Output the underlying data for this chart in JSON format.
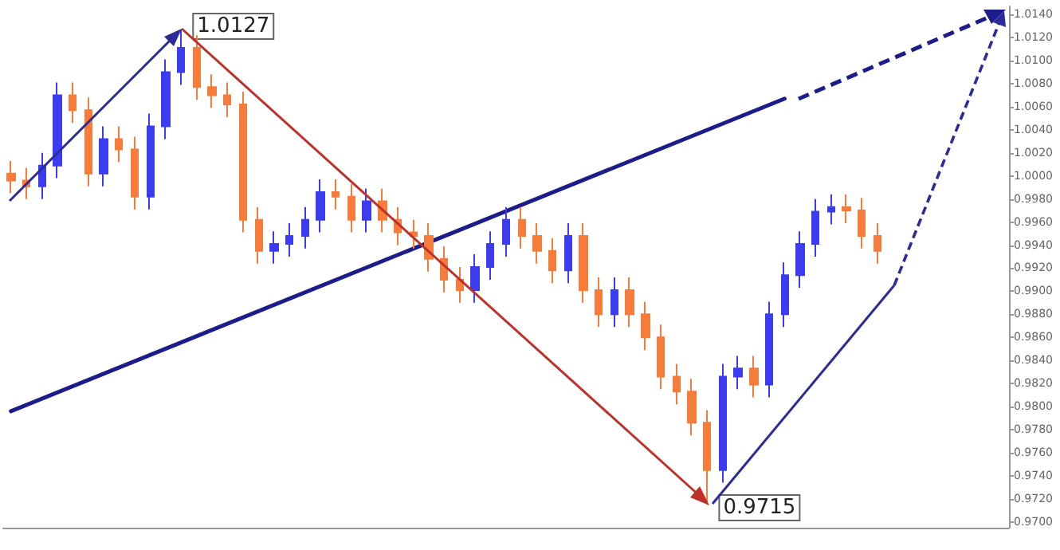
{
  "chart_data": {
    "type": "candlestick",
    "tick_labels": "y",
    "yticks": [
      {
        "value": 0.97,
        "label": "0.9700"
      },
      {
        "value": 0.972,
        "label": "0.9720"
      },
      {
        "value": 0.974,
        "label": "0.9740"
      },
      {
        "value": 0.976,
        "label": "0.9760"
      },
      {
        "value": 0.978,
        "label": "0.9780"
      },
      {
        "value": 0.98,
        "label": "0.9800"
      },
      {
        "value": 0.982,
        "label": "0.9820"
      },
      {
        "value": 0.984,
        "label": "0.9840"
      },
      {
        "value": 0.986,
        "label": "0.9860"
      },
      {
        "value": 0.988,
        "label": "0.9880"
      },
      {
        "value": 0.99,
        "label": "0.9900"
      },
      {
        "value": 0.992,
        "label": "0.9920"
      },
      {
        "value": 0.994,
        "label": "0.9940"
      },
      {
        "value": 0.996,
        "label": "0.9960"
      },
      {
        "value": 0.998,
        "label": "0.9980"
      },
      {
        "value": 1.0,
        "label": "1.0000"
      },
      {
        "value": 1.002,
        "label": "1.0020"
      },
      {
        "value": 1.004,
        "label": "1.0040"
      },
      {
        "value": 1.006,
        "label": "1.0060"
      },
      {
        "value": 1.008,
        "label": "1.0080"
      },
      {
        "value": 1.01,
        "label": "1.0100"
      },
      {
        "value": 1.012,
        "label": "1.0120"
      },
      {
        "value": 1.014,
        "label": "1.0140"
      }
    ],
    "categories": [
      null,
      null,
      null,
      null,
      null,
      null,
      null,
      null,
      null,
      null,
      null,
      null,
      null,
      null,
      null,
      null,
      null,
      null,
      null,
      null,
      null,
      null,
      null,
      null,
      null,
      null,
      null,
      null,
      null,
      null,
      null,
      null,
      null,
      null,
      null,
      null,
      null,
      null,
      null,
      null,
      null,
      null,
      null,
      null,
      null,
      null,
      null,
      null,
      null,
      null,
      null,
      null,
      null,
      null,
      null,
      null,
      null,
      null,
      null,
      null,
      null,
      null,
      null,
      null,
      null
    ],
    "ylim": [
      0.9695,
      1.0147
    ],
    "ohlc": [
      [
        1.0002,
        1.0013,
        0.9985,
        0.9996
      ],
      [
        0.9996,
        1.0007,
        0.998,
        0.9991
      ],
      [
        0.9991,
        1.002,
        0.998,
        1.0009
      ],
      [
        1.0009,
        1.0081,
        0.9998,
        1.007
      ],
      [
        1.007,
        1.0081,
        1.0046,
        1.0057
      ],
      [
        1.0057,
        1.0068,
        0.9991,
        1.0002
      ],
      [
        1.0002,
        1.0043,
        0.9991,
        1.0032
      ],
      [
        1.0032,
        1.0043,
        1.0012,
        1.0023
      ],
      [
        1.0023,
        1.0034,
        0.9971,
        0.9982
      ],
      [
        0.9982,
        1.0054,
        0.9971,
        1.0043
      ],
      [
        1.0043,
        1.0101,
        1.0032,
        1.009
      ],
      [
        1.009,
        1.0127,
        1.0079,
        1.0111
      ],
      [
        1.0111,
        1.0122,
        1.0066,
        1.0077
      ],
      [
        1.0077,
        1.0088,
        1.0059,
        1.007
      ],
      [
        1.007,
        1.0081,
        1.0051,
        1.0062
      ],
      [
        1.0062,
        1.0073,
        0.9951,
        0.9962
      ],
      [
        0.9962,
        0.9973,
        0.9924,
        0.9935
      ],
      [
        0.9935,
        0.9952,
        0.9924,
        0.9941
      ],
      [
        0.9941,
        0.9959,
        0.993,
        0.9948
      ],
      [
        0.9948,
        0.9973,
        0.9937,
        0.9962
      ],
      [
        0.9962,
        0.9997,
        0.9951,
        0.9986
      ],
      [
        0.9986,
        0.9997,
        0.9971,
        0.9982
      ],
      [
        0.9982,
        0.9993,
        0.9951,
        0.9962
      ],
      [
        0.9962,
        0.9989,
        0.9951,
        0.9978
      ],
      [
        0.9978,
        0.9989,
        0.9951,
        0.9962
      ],
      [
        0.9962,
        0.9973,
        0.994,
        0.9951
      ],
      [
        0.9951,
        0.9962,
        0.9937,
        0.9948
      ],
      [
        0.9948,
        0.9959,
        0.9917,
        0.9928
      ],
      [
        0.9928,
        0.9939,
        0.9899,
        0.991
      ],
      [
        0.991,
        0.9921,
        0.989,
        0.9901
      ],
      [
        0.9901,
        0.9932,
        0.989,
        0.9921
      ],
      [
        0.9921,
        0.9952,
        0.991,
        0.9941
      ],
      [
        0.9941,
        0.9973,
        0.993,
        0.9962
      ],
      [
        0.9962,
        0.9973,
        0.9937,
        0.9948
      ],
      [
        0.9948,
        0.9959,
        0.9924,
        0.9935
      ],
      [
        0.9935,
        0.9946,
        0.9907,
        0.9918
      ],
      [
        0.9918,
        0.9959,
        0.9907,
        0.9948
      ],
      [
        0.9948,
        0.9959,
        0.989,
        0.9901
      ],
      [
        0.9901,
        0.9912,
        0.9869,
        0.988
      ],
      [
        0.988,
        0.9912,
        0.9869,
        0.9901
      ],
      [
        0.9901,
        0.9912,
        0.9869,
        0.988
      ],
      [
        0.988,
        0.9891,
        0.9849,
        0.986
      ],
      [
        0.986,
        0.9871,
        0.9815,
        0.9826
      ],
      [
        0.9826,
        0.9837,
        0.9802,
        0.9813
      ],
      [
        0.9813,
        0.9824,
        0.9775,
        0.9786
      ],
      [
        0.9786,
        0.9797,
        0.9715,
        0.9745
      ],
      [
        0.9745,
        0.9837,
        0.9734,
        0.9826
      ],
      [
        0.9826,
        0.9844,
        0.9815,
        0.9833
      ],
      [
        0.9833,
        0.9844,
        0.9808,
        0.9819
      ],
      [
        0.9819,
        0.9891,
        0.9808,
        0.988
      ],
      [
        0.988,
        0.9925,
        0.9869,
        0.9914
      ],
      [
        0.9914,
        0.9952,
        0.9903,
        0.9941
      ],
      [
        0.9941,
        0.998,
        0.993,
        0.9969
      ],
      [
        0.9969,
        0.9984,
        0.9958,
        0.9973
      ],
      [
        0.9973,
        0.9984,
        0.9959,
        0.997
      ],
      [
        0.997,
        0.9981,
        0.9937,
        0.9948
      ],
      [
        0.9948,
        0.9959,
        0.9924,
        0.9935
      ],
      null,
      null,
      null,
      null,
      null,
      null,
      null,
      null
    ],
    "colors": [
      "#f57c3a",
      "#f57c3a",
      "#3b3bf0",
      "#3b3bf0",
      "#f57c3a",
      "#f57c3a",
      "#3b3bf0",
      "#f57c3a",
      "#f57c3a",
      "#3b3bf0",
      "#3b3bf0",
      "#3b3bf0",
      "#f57c3a",
      "#f57c3a",
      "#f57c3a",
      "#f57c3a",
      "#f57c3a",
      "#3b3bf0",
      "#3b3bf0",
      "#3b3bf0",
      "#3b3bf0",
      "#f57c3a",
      "#f57c3a",
      "#3b3bf0",
      "#f57c3a",
      "#f57c3a",
      "#f57c3a",
      "#f57c3a",
      "#f57c3a",
      "#f57c3a",
      "#3b3bf0",
      "#3b3bf0",
      "#3b3bf0",
      "#f57c3a",
      "#f57c3a",
      "#f57c3a",
      "#3b3bf0",
      "#f57c3a",
      "#f57c3a",
      "#3b3bf0",
      "#f57c3a",
      "#f57c3a",
      "#f57c3a",
      "#f57c3a",
      "#f57c3a",
      "#f57c3a",
      "#3b3bf0",
      "#3b3bf0",
      "#f57c3a",
      "#3b3bf0",
      "#3b3bf0",
      "#3b3bf0",
      "#3b3bf0",
      "#3b3bf0",
      "#f57c3a",
      "#f57c3a",
      "#f57c3a",
      null,
      null,
      null,
      null,
      null,
      null,
      null,
      null
    ],
    "series": [
      {
        "type": "line",
        "color": "#1c1c8c",
        "values": [
          0.9796,
          null,
          null,
          null,
          null,
          null,
          null,
          null,
          null,
          null,
          null,
          null,
          null,
          null,
          null,
          null,
          null,
          null,
          null,
          null,
          null,
          null,
          null,
          null,
          null,
          null,
          null,
          null,
          null,
          null,
          null,
          null,
          null,
          null,
          null,
          null,
          null,
          null,
          null,
          null,
          null,
          null,
          null,
          null,
          null,
          null,
          null,
          null,
          null,
          null,
          1.0067,
          null,
          null,
          null,
          null,
          null,
          null,
          null,
          null,
          null,
          null,
          null,
          null,
          null,
          null
        ]
      }
    ],
    "annotations": [
      "1.0127",
      "0.9715"
    ]
  }
}
